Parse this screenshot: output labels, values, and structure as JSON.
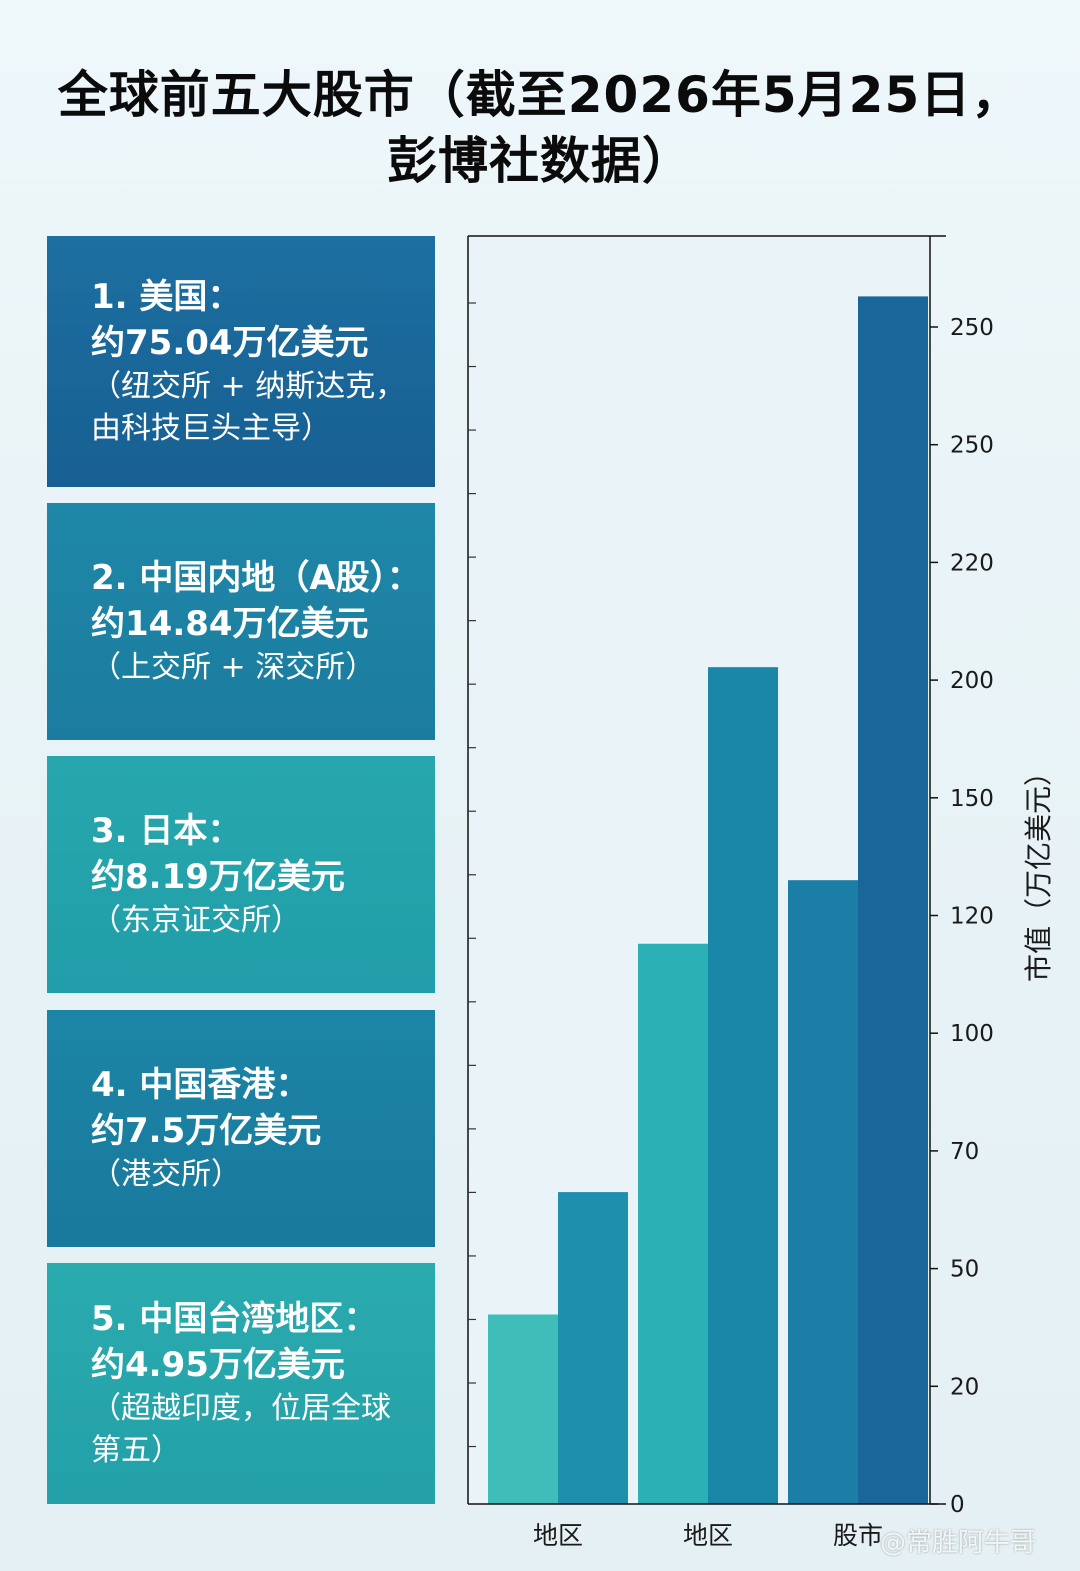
{
  "title": {
    "line1": "全球前五大股市（截至2026年5月25日，",
    "line2": "彭博社数据）"
  },
  "cards": [
    {
      "heading": "1. 美国：",
      "value": "约75.04万亿美元",
      "notes": [
        "（纽交所 + 纳斯达克，",
        "由科技巨头主导）"
      ]
    },
    {
      "heading": "2. 中国内地（A股）：",
      "value": "约14.84万亿美元",
      "notes": [
        "（上交所 + 深交所）"
      ]
    },
    {
      "heading": "3. 日本：",
      "value": "约8.19万亿美元",
      "notes": [
        "（东京证交所）"
      ]
    },
    {
      "heading": "4. 中国香港：",
      "value": "约7.5万亿美元",
      "notes": [
        "（港交所）"
      ]
    },
    {
      "heading": "5. 中国台湾地区：",
      "value": "约4.95万亿美元",
      "notes": [
        "（超越印度，位居全球",
        "第五）"
      ]
    }
  ],
  "chart_data": {
    "type": "bar",
    "ylabel": "市值（万亿美元）",
    "y_tick_labels": [
      "0",
      "20",
      "50",
      "70",
      "100",
      "120",
      "150",
      "200",
      "220",
      "250",
      "250"
    ],
    "categories": [
      "地区",
      "地区",
      "股市"
    ],
    "bars": [
      {
        "category": "地区",
        "level": 0.161,
        "color": "#3fbdb9"
      },
      {
        "category": "地区",
        "level": 0.265,
        "color": "#1f8fae"
      },
      {
        "category": "地区",
        "level": 0.476,
        "color": "#2bb0b5"
      },
      {
        "category": "地区",
        "level": 0.711,
        "color": "#1b87a8"
      },
      {
        "category": "股市",
        "level": 0.53,
        "color": "#1a7ea6"
      },
      {
        "category": "股市",
        "level": 1.026,
        "color": "#19679a"
      }
    ],
    "grid": false,
    "y_axis_side": "right"
  },
  "watermark": "@常胜阿牛哥"
}
